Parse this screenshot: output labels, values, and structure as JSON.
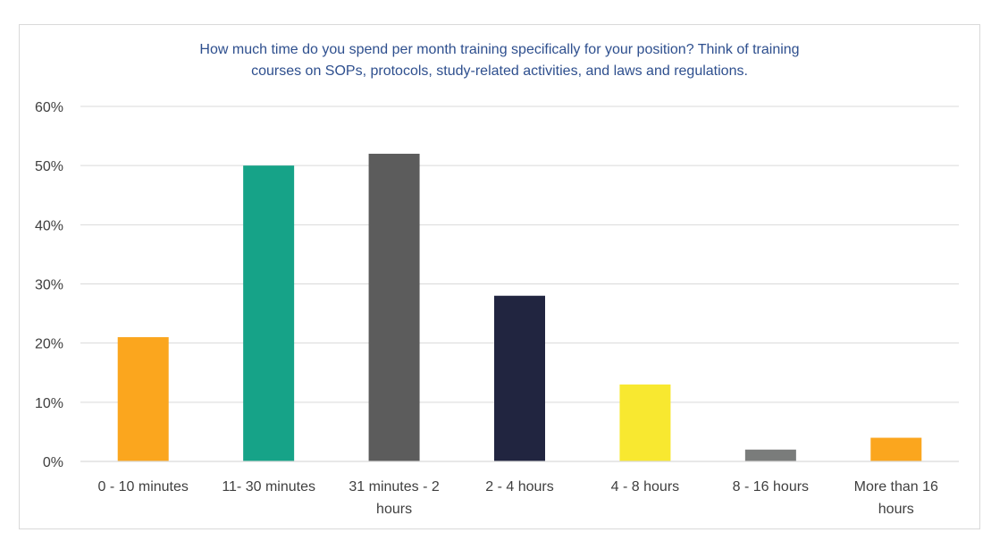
{
  "chart_data": {
    "type": "bar",
    "title_lines": [
      "How much time do you spend per month training specifically for your position? Think of training",
      "courses on SOPs, protocols, study-related activities, and laws and regulations."
    ],
    "categories": [
      "0 - 10 minutes",
      "11- 30 minutes",
      "31 minutes  - 2 hours",
      "2 - 4 hours",
      "4 - 8 hours",
      "8 - 16 hours",
      "More than 16 hours"
    ],
    "category_lines": [
      [
        "0 - 10 minutes"
      ],
      [
        "11- 30 minutes"
      ],
      [
        "31 minutes  - 2",
        "hours"
      ],
      [
        "2 - 4 hours"
      ],
      [
        "4 - 8 hours"
      ],
      [
        "8 - 16 hours"
      ],
      [
        "More than 16",
        "hours"
      ]
    ],
    "values": [
      21,
      50,
      52,
      28,
      13,
      2,
      4
    ],
    "bar_colors": [
      "#FBA61E",
      "#16A388",
      "#5C5C5C",
      "#212540",
      "#F8E830",
      "#7A7C7B",
      "#FBA61E"
    ],
    "ylim": [
      0,
      60
    ],
    "yticks": [
      "0%",
      "10%",
      "20%",
      "30%",
      "40%",
      "50%",
      "60%"
    ],
    "ytick_values": [
      0,
      10,
      20,
      30,
      40,
      50,
      60
    ],
    "grid": true,
    "legend": "none",
    "title_color": "#2E4F8E",
    "grid_color": "#D9D9D9"
  }
}
